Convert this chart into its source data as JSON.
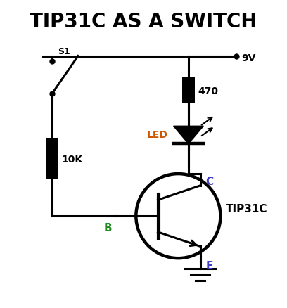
{
  "title": "TIP31C AS A SWITCH",
  "title_fontsize": 20,
  "title_fontweight": "bold",
  "bg_color": "#ffffff",
  "line_color": "#000000",
  "line_width": 2.2,
  "vcc_label": "9V",
  "r1_label": "470",
  "r2_label": "10K",
  "led_label": "LED",
  "s1_label": "S1",
  "b_label": "B",
  "c_label": "C",
  "e_label": "E",
  "tip_label": "TIP31C",
  "b_color": "#228B22",
  "c_color": "#4040CC",
  "e_color": "#4040CC",
  "led_label_color": "#CC5500"
}
